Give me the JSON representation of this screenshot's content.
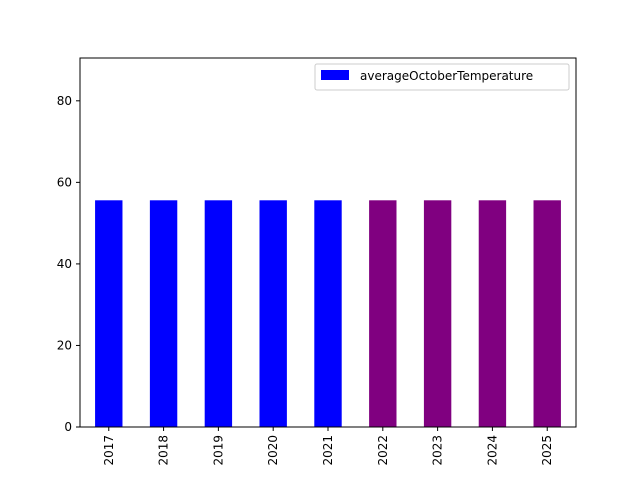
{
  "chart_data": {
    "type": "bar",
    "categories": [
      "2017",
      "2018",
      "2019",
      "2020",
      "2021",
      "2022",
      "2023",
      "2024",
      "2025"
    ],
    "series": [
      {
        "name": "averageOctoberTemperature",
        "values": [
          55.6,
          55.6,
          55.6,
          55.6,
          55.6,
          55.6,
          55.6,
          55.6,
          55.6
        ],
        "colors": [
          "#0000ff",
          "#0000ff",
          "#0000ff",
          "#0000ff",
          "#0000ff",
          "#800080",
          "#800080",
          "#800080",
          "#800080"
        ]
      }
    ],
    "legend": {
      "label": "averageOctoberTemperature",
      "swatch_color": "#0000ff",
      "placement": "upper-right"
    },
    "title": "",
    "xlabel": "",
    "ylabel": "",
    "ylim": [
      0,
      90.5
    ],
    "yticks": [
      0,
      20,
      40,
      60,
      80
    ],
    "xtick_rotation": "vertical",
    "grid": false
  }
}
